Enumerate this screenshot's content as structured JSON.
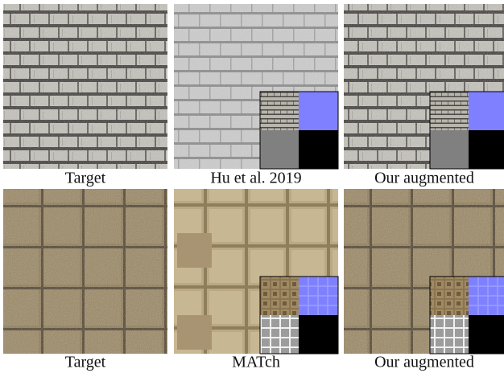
{
  "figure": {
    "rows": [
      {
        "panels": [
          {
            "caption": "Target"
          },
          {
            "caption": "Hu et al. 2019"
          },
          {
            "caption": "Our augmented"
          }
        ]
      },
      {
        "panels": [
          {
            "caption": "Target"
          },
          {
            "caption": "MATch"
          },
          {
            "caption": "Our augmented"
          }
        ]
      }
    ]
  }
}
